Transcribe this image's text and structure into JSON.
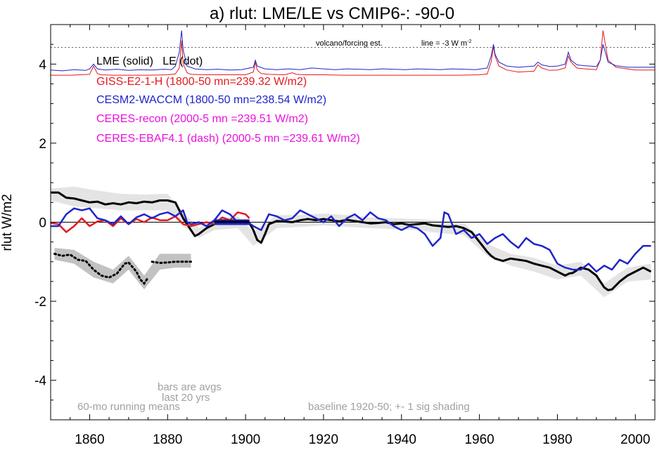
{
  "chart_data": {
    "type": "line",
    "title": "a) rlut: LME/LE vs CMIP6-: -90-0",
    "ylabel": "rlut W/m2",
    "xlabel": "",
    "xlim": [
      1850,
      2005
    ],
    "ylim": [
      -5,
      5
    ],
    "x_ticks": [
      1860,
      1880,
      1900,
      1920,
      1940,
      1960,
      1980,
      2000
    ],
    "y_ticks": [
      -4,
      -2,
      0,
      2,
      4
    ],
    "y_tick_labels": [
      "-4",
      "-2",
      "0",
      "2",
      "4"
    ],
    "x_tick_labels": [
      "1860",
      "1880",
      "1900",
      "1920",
      "1940",
      "1960",
      "1980",
      "2000"
    ],
    "grid": false,
    "legend_placement": "top-left",
    "legend": [
      {
        "text": "LME (solid)   LE (dot)",
        "color": "#000000"
      },
      {
        "text": "GISS-E2-1-H (1800-50 mn=239.32 W/m2)",
        "color": "#e31a1c"
      },
      {
        "text": "CESM2-WACCM (1800-50 mn=238.54 W/m2)",
        "color": "#1f24c9"
      },
      {
        "text": "CERES-recon (2000-5 mn =239.51 W/m2)",
        "color": "#ea10dd"
      },
      {
        "text": "CERES-EBAF4.1 (dash) (2000-5 mn =239.61 W/m2)",
        "color": "#ea10dd"
      }
    ],
    "annotations": {
      "volcano": "volcano/forcing est.",
      "line_note": "line = -3 W m",
      "line_note_sup": "-2",
      "bars_line1": "bars are avgs",
      "bars_line2": "last 20 yrs",
      "running": "60-mo running means",
      "baseline": "baseline 1920-50; +- 1 sig shading"
    },
    "reference_lines": {
      "zero": 0,
      "volcano_dotted": 4.42
    },
    "series": [
      {
        "key": "lme",
        "color": "#000000",
        "style": "solid",
        "x": [
          1850,
          1852,
          1854,
          1856,
          1858,
          1860,
          1862,
          1864,
          1866,
          1868,
          1870,
          1872,
          1874,
          1876,
          1878,
          1880,
          1882,
          1883,
          1884,
          1885,
          1886,
          1887,
          1888,
          1890,
          1892,
          1894,
          1896,
          1898,
          1900,
          1901,
          1902,
          1903,
          1904,
          1905,
          1906,
          1908,
          1910,
          1912,
          1914,
          1916,
          1918,
          1920,
          1922,
          1924,
          1926,
          1928,
          1930,
          1932,
          1934,
          1936,
          1938,
          1940,
          1942,
          1944,
          1946,
          1948,
          1950,
          1952,
          1954,
          1956,
          1958,
          1960,
          1962,
          1963,
          1964,
          1965,
          1966,
          1968,
          1970,
          1972,
          1974,
          1976,
          1978,
          1980,
          1982,
          1983,
          1984,
          1986,
          1988,
          1990,
          1991,
          1992,
          1993,
          1994,
          1996,
          1998,
          2000,
          2002,
          2004
        ],
        "y": [
          0.75,
          0.75,
          0.62,
          0.6,
          0.55,
          0.5,
          0.52,
          0.45,
          0.48,
          0.45,
          0.5,
          0.48,
          0.52,
          0.5,
          0.55,
          0.55,
          0.5,
          0.3,
          0.1,
          -0.05,
          -0.2,
          -0.35,
          -0.3,
          -0.15,
          -0.05,
          0.05,
          0.03,
          0.0,
          0.0,
          -0.02,
          -0.2,
          -0.45,
          -0.52,
          -0.3,
          -0.05,
          0.03,
          0.02,
          0.0,
          0.05,
          0.08,
          0.05,
          0.08,
          0.05,
          0.02,
          0.06,
          0.03,
          0.0,
          -0.03,
          -0.02,
          0.0,
          -0.05,
          -0.03,
          -0.07,
          -0.05,
          -0.03,
          -0.08,
          -0.1,
          -0.12,
          -0.1,
          -0.15,
          -0.25,
          -0.5,
          -0.75,
          -0.85,
          -0.92,
          -0.95,
          -0.98,
          -0.92,
          -0.95,
          -0.98,
          -1.05,
          -1.1,
          -1.15,
          -1.25,
          -1.35,
          -1.3,
          -1.28,
          -1.15,
          -1.2,
          -1.35,
          -1.5,
          -1.65,
          -1.72,
          -1.7,
          -1.5,
          -1.35,
          -1.25,
          -1.15,
          -1.25
        ]
      },
      {
        "key": "le",
        "color": "#000000",
        "style": "dot",
        "segments": [
          {
            "x": [
              1851,
              1853,
              1855,
              1857,
              1859,
              1861,
              1863,
              1865,
              1867,
              1869,
              1870,
              1872,
              1873,
              1874,
              1875
            ],
            "y": [
              -0.8,
              -0.85,
              -0.82,
              -0.95,
              -0.98,
              -1.2,
              -1.35,
              -1.4,
              -1.3,
              -1.05,
              -1.02,
              -1.25,
              -1.45,
              -1.55,
              -1.4
            ]
          },
          {
            "x": [
              1876,
              1878,
              1880,
              1882,
              1884,
              1886
            ],
            "y": [
              -1.0,
              -1.03,
              -1.02,
              -1.0,
              -1.0,
              -1.0
            ]
          }
        ]
      },
      {
        "key": "giss",
        "color": "#e31a1c",
        "style": "solid",
        "x": [
          1850,
          1852,
          1854,
          1856,
          1858,
          1860,
          1862,
          1864,
          1866,
          1868,
          1870,
          1872,
          1874,
          1876,
          1878,
          1880,
          1882,
          1884,
          1886,
          1888,
          1890,
          1892,
          1894,
          1896,
          1898,
          1900,
          1901
        ],
        "y": [
          -0.02,
          -0.05,
          -0.25,
          -0.1,
          0.1,
          -0.1,
          0.02,
          0.05,
          -0.1,
          0.1,
          -0.05,
          0.08,
          0.0,
          0.12,
          0.05,
          0.05,
          0.15,
          -0.05,
          -0.1,
          -0.05,
          0.0,
          -0.05,
          0.12,
          0.05,
          0.25,
          0.2,
          0.1
        ]
      },
      {
        "key": "cesm",
        "color": "#1f24c9",
        "style": "solid",
        "x": [
          1850,
          1852,
          1854,
          1856,
          1858,
          1860,
          1862,
          1864,
          1866,
          1868,
          1870,
          1872,
          1874,
          1876,
          1878,
          1880,
          1882,
          1884,
          1885,
          1886,
          1888,
          1890,
          1892,
          1894,
          1896,
          1898,
          1900,
          1902,
          1904,
          1906,
          1908,
          1910,
          1912,
          1914,
          1916,
          1918,
          1920,
          1922,
          1924,
          1926,
          1928,
          1930,
          1932,
          1934,
          1936,
          1938,
          1940,
          1942,
          1944,
          1946,
          1948,
          1950,
          1951,
          1952,
          1954,
          1956,
          1958,
          1960,
          1962,
          1964,
          1966,
          1968,
          1970,
          1972,
          1974,
          1976,
          1978,
          1980,
          1982,
          1984,
          1986,
          1988,
          1990,
          1992,
          1994,
          1996,
          1998,
          2000,
          2002,
          2004
        ],
        "y": [
          -0.1,
          -0.1,
          0.2,
          0.35,
          0.3,
          0.35,
          0.1,
          0.05,
          -0.05,
          0.15,
          -0.05,
          0.12,
          0.2,
          0.1,
          0.2,
          0.25,
          0.15,
          0.3,
          0.0,
          -0.05,
          0.0,
          -0.1,
          0.05,
          0.3,
          0.2,
          0.0,
          0.05,
          -0.1,
          -0.2,
          0.2,
          0.15,
          0.05,
          0.1,
          0.3,
          0.2,
          0.1,
          0.0,
          0.15,
          -0.1,
          0.1,
          0.2,
          0.05,
          0.25,
          0.1,
          0.05,
          -0.1,
          -0.2,
          -0.1,
          -0.15,
          -0.3,
          -0.6,
          -0.4,
          0.25,
          0.2,
          -0.3,
          -0.2,
          -0.4,
          -0.3,
          -0.55,
          -0.4,
          -0.3,
          -0.5,
          -0.65,
          -0.4,
          -0.55,
          -0.6,
          -0.7,
          -1.05,
          -1.15,
          -1.2,
          -1.2,
          -1.05,
          -1.25,
          -1.1,
          -1.2,
          -0.95,
          -1.05,
          -0.8,
          -0.6,
          -0.6
        ]
      }
    ],
    "lme_band": {
      "x": [
        1850,
        1856,
        1862,
        1868,
        1874,
        1880,
        1884,
        1888,
        1892,
        1898,
        1902,
        1908,
        1914,
        1920,
        1926,
        1932,
        1938,
        1944,
        1950,
        1956,
        1962,
        1968,
        1974,
        1980,
        1986,
        1992,
        1998,
        2004
      ],
      "y_low": [
        0.55,
        0.4,
        0.35,
        0.3,
        0.3,
        0.3,
        -0.1,
        -0.4,
        -0.2,
        -0.15,
        -0.6,
        -0.15,
        -0.12,
        -0.08,
        -0.12,
        -0.15,
        -0.18,
        -0.2,
        -0.28,
        -0.32,
        -0.85,
        -1.1,
        -1.25,
        -1.45,
        -1.35,
        -1.9,
        -1.5,
        -1.45
      ],
      "y_high": [
        0.85,
        0.9,
        0.8,
        0.72,
        0.7,
        0.72,
        0.25,
        -0.15,
        0.1,
        0.15,
        -0.25,
        0.18,
        0.18,
        0.22,
        0.18,
        0.12,
        0.1,
        0.08,
        0.05,
        -0.02,
        -0.55,
        -0.8,
        -0.9,
        -1.1,
        -1.0,
        -1.55,
        -1.15,
        -1.05
      ]
    },
    "le_band": {
      "x": [
        1851,
        1856,
        1861,
        1866,
        1870,
        1874,
        1878,
        1882,
        1886
      ],
      "y_low": [
        -0.95,
        -1.05,
        -1.4,
        -1.55,
        -1.2,
        -1.7,
        -1.2,
        -1.15,
        -1.15
      ],
      "y_high": [
        -0.65,
        -0.7,
        -1.0,
        -1.2,
        -0.85,
        -1.35,
        -0.8,
        -0.8,
        -0.8
      ]
    },
    "bars": [
      {
        "key": "cesm_bar",
        "color": "#1f24c9",
        "x0": 1892,
        "x1": 1901,
        "y": 0.0
      },
      {
        "key": "lme_bar",
        "color": "#000000",
        "x0": 1892,
        "x1": 1901,
        "y": 0.01
      }
    ],
    "forcing_curves": [
      {
        "key": "forcing_giss",
        "color": "#e31a1c",
        "x": [
          1850,
          1855,
          1860,
          1861,
          1862,
          1863,
          1866,
          1870,
          1875,
          1880,
          1882,
          1883,
          1883.6,
          1884,
          1885,
          1886,
          1890,
          1895,
          1900,
          1902,
          1902.5,
          1903,
          1904,
          1906,
          1910,
          1912,
          1913,
          1915,
          1920,
          1925,
          1930,
          1935,
          1940,
          1945,
          1950,
          1955,
          1960,
          1962,
          1963,
          1963.6,
          1964,
          1965,
          1967,
          1970,
          1974,
          1975,
          1976,
          1978,
          1980,
          1982,
          1982.8,
          1983.5,
          1985,
          1987,
          1990,
          1991,
          1991.7,
          1992.3,
          1993,
          1995,
          2000,
          2005
        ],
        "y": [
          3.72,
          3.72,
          3.74,
          3.95,
          3.76,
          3.73,
          3.72,
          3.72,
          3.72,
          3.73,
          3.75,
          3.9,
          4.6,
          4.0,
          3.78,
          3.74,
          3.73,
          3.73,
          3.73,
          3.8,
          4.05,
          3.85,
          3.76,
          3.74,
          3.73,
          3.78,
          3.74,
          3.73,
          3.73,
          3.72,
          3.72,
          3.72,
          3.72,
          3.72,
          3.72,
          3.72,
          3.73,
          3.75,
          4.05,
          4.45,
          4.2,
          3.95,
          3.85,
          3.8,
          3.82,
          3.98,
          3.9,
          3.84,
          3.85,
          3.9,
          4.2,
          4.05,
          3.9,
          3.88,
          3.86,
          4.1,
          4.85,
          4.5,
          4.1,
          3.92,
          3.85,
          3.85
        ]
      },
      {
        "key": "forcing_cesm",
        "color": "#1f24c9",
        "x": [
          1850,
          1853,
          1856,
          1859,
          1860,
          1861,
          1862,
          1864,
          1867,
          1870,
          1873,
          1876,
          1879,
          1881,
          1882,
          1883,
          1883.6,
          1884,
          1885,
          1887,
          1890,
          1893,
          1896,
          1899,
          1902,
          1902.5,
          1903,
          1905,
          1908,
          1911,
          1914,
          1917,
          1920,
          1923,
          1926,
          1929,
          1932,
          1935,
          1938,
          1941,
          1944,
          1947,
          1950,
          1953,
          1956,
          1959,
          1962,
          1963,
          1963.6,
          1964,
          1965,
          1967,
          1970,
          1974,
          1975,
          1976,
          1978,
          1980,
          1982,
          1982.8,
          1983.5,
          1985,
          1987,
          1990,
          1991,
          1991.7,
          1992.3,
          1993,
          1995,
          1998,
          2001,
          2005
        ],
        "y": [
          3.85,
          3.83,
          3.86,
          3.84,
          3.88,
          4.0,
          3.88,
          3.85,
          3.87,
          3.84,
          3.86,
          3.85,
          3.87,
          3.86,
          3.95,
          4.3,
          4.85,
          4.35,
          3.95,
          3.88,
          3.86,
          3.87,
          3.85,
          3.86,
          3.92,
          4.1,
          3.95,
          3.88,
          3.86,
          3.88,
          3.86,
          3.9,
          3.88,
          3.86,
          3.88,
          3.87,
          3.86,
          3.88,
          3.87,
          3.86,
          3.88,
          3.87,
          3.86,
          3.88,
          3.87,
          3.86,
          3.9,
          4.2,
          4.5,
          4.25,
          4.05,
          3.95,
          3.92,
          3.95,
          4.05,
          3.98,
          3.94,
          3.95,
          4.0,
          4.3,
          4.1,
          3.98,
          3.96,
          3.94,
          4.1,
          4.5,
          4.3,
          4.05,
          3.96,
          3.92,
          3.92,
          3.92
        ]
      }
    ]
  }
}
